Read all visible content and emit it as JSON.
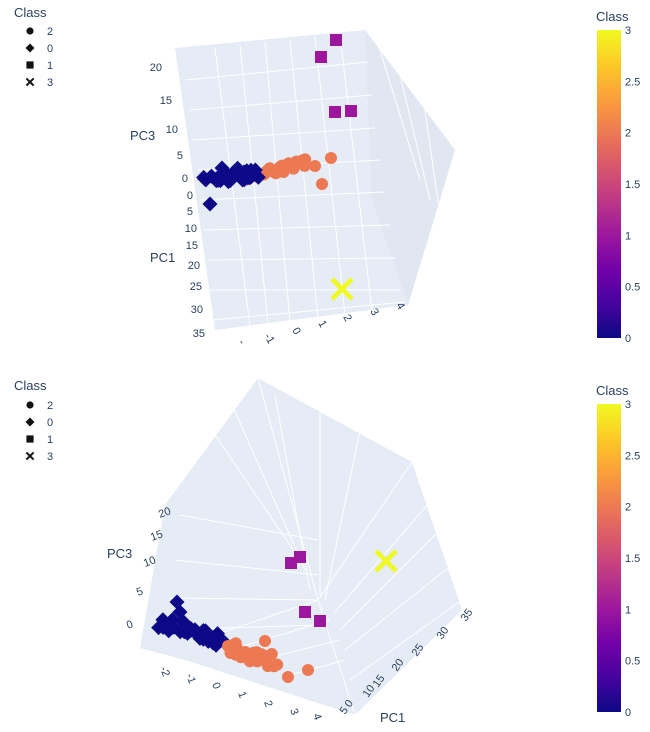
{
  "chart_data": [
    {
      "type": "scatter3d",
      "axes": {
        "x": "PC1",
        "z": "PC3",
        "y_tick_partial": "-"
      },
      "legend": {
        "title": "Class",
        "entries": [
          {
            "label": "2",
            "symbol": "circle"
          },
          {
            "label": "0",
            "symbol": "diamond"
          },
          {
            "label": "1",
            "symbol": "square"
          },
          {
            "label": "3",
            "symbol": "x"
          }
        ]
      },
      "colorbar": {
        "title": "Class",
        "min": 0,
        "max": 3,
        "ticks": [
          "0",
          "0.5",
          "1",
          "1.5",
          "2",
          "2.5",
          "3"
        ],
        "colorscale": [
          "#0d0887",
          "#46039f",
          "#7201a8",
          "#9c179e",
          "#bd3786",
          "#d8576b",
          "#ed7953",
          "#fb9f3a",
          "#fdca26",
          "#f0f921"
        ]
      },
      "pc3_ticks": [
        "20",
        "15",
        "10",
        "5",
        "0"
      ],
      "pc1_ticks": [
        "0",
        "5",
        "10",
        "15",
        "20",
        "25",
        "30",
        "35"
      ],
      "pc2_ticks": [
        "-1",
        "0",
        "1",
        "2",
        "3",
        "4"
      ],
      "classes": {
        "0": {
          "color": "#0d0887",
          "symbol": "diamond"
        },
        "1": {
          "color": "#9c179e",
          "symbol": "square"
        },
        "2": {
          "color": "#ed7953",
          "symbol": "circle"
        },
        "3": {
          "color": "#f0f921",
          "symbol": "x"
        }
      }
    },
    {
      "type": "scatter3d",
      "axes": {
        "x": "PC1",
        "z": "PC3"
      },
      "legend": {
        "title": "Class",
        "entries": [
          {
            "label": "2",
            "symbol": "circle"
          },
          {
            "label": "0",
            "symbol": "diamond"
          },
          {
            "label": "1",
            "symbol": "square"
          },
          {
            "label": "3",
            "symbol": "x"
          }
        ]
      },
      "colorbar": {
        "title": "Class",
        "min": 0,
        "max": 3,
        "ticks": [
          "0",
          "0.5",
          "1",
          "1.5",
          "2",
          "2.5",
          "3"
        ]
      },
      "pc3_ticks": [
        "20",
        "15",
        "10",
        "5",
        "0"
      ],
      "pc1_ticks": [
        "0",
        "5",
        "10",
        "15",
        "20",
        "25",
        "30",
        "35"
      ],
      "pc2_ticks": [
        "-2",
        "-1",
        "0",
        "1",
        "2",
        "3",
        "4"
      ]
    }
  ]
}
